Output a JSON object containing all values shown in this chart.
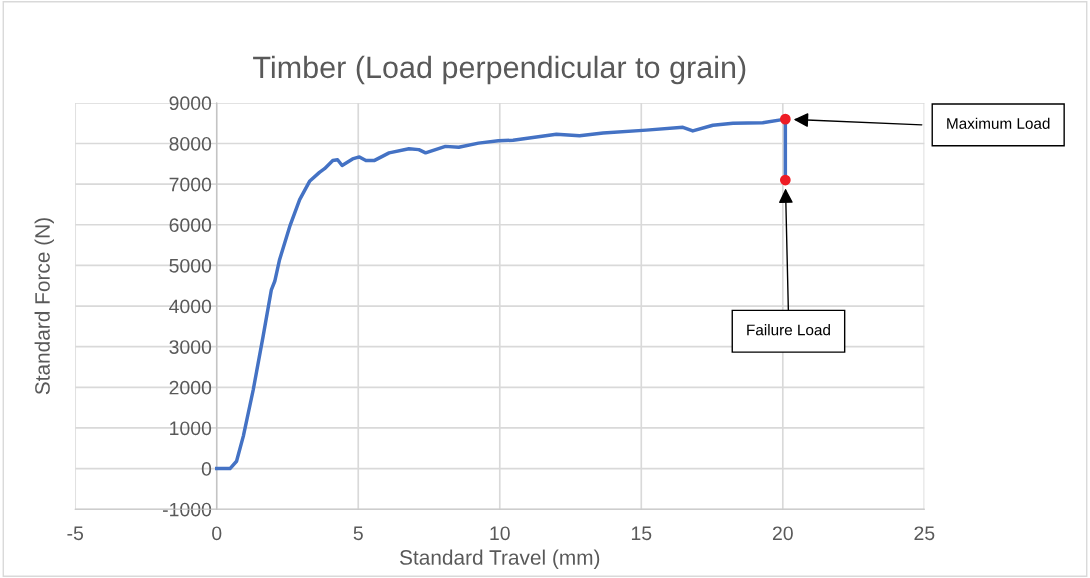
{
  "chart_data": {
    "type": "line",
    "title": "Timber (Load perpendicular to grain)",
    "xlabel": "Standard Travel (mm)",
    "ylabel": "Standard Force (N)",
    "xlim": [
      -5,
      25
    ],
    "xticks": [
      -5,
      0,
      5,
      10,
      15,
      20,
      25
    ],
    "ylim": [
      -1000,
      9000
    ],
    "yticks": [
      -1000,
      0,
      1000,
      2000,
      3000,
      4000,
      5000,
      6000,
      7000,
      8000,
      9000
    ],
    "grid": true,
    "legend": false,
    "series": [
      {
        "type": "line",
        "color": "#4472c4",
        "marker": "none",
        "x": [
          0,
          0.47,
          0.7,
          0.94,
          1.29,
          1.64,
          1.93,
          2.05,
          2.22,
          2.58,
          2.93,
          3.28,
          3.63,
          3.81,
          4.1,
          4.27,
          4.43,
          4.8,
          5.04,
          5.27,
          5.56,
          6.09,
          6.79,
          7.14,
          7.38,
          8.08,
          8.55,
          9.25,
          9.95,
          10.47,
          12.0,
          12.82,
          13.65,
          15.18,
          16.47,
          16.82,
          17.53,
          18.24,
          19.29,
          20.09,
          20.09
        ],
        "values": [
          0,
          0,
          180,
          800,
          1940,
          3260,
          4400,
          4610,
          5140,
          5960,
          6620,
          7070,
          7290,
          7380,
          7580,
          7600,
          7460,
          7620,
          7670,
          7580,
          7580,
          7770,
          7870,
          7850,
          7770,
          7930,
          7910,
          8010,
          8070,
          8080,
          8230,
          8190,
          8260,
          8330,
          8400,
          8310,
          8450,
          8500,
          8510,
          8600,
          7100
        ]
      },
      {
        "type": "scatter",
        "color": "#ee1c25",
        "marker": "circle",
        "x": [
          20.09,
          20.09
        ],
        "values": [
          8600,
          7100
        ]
      }
    ],
    "annotations": [
      "Maximum Load",
      "Failure Load"
    ]
  }
}
